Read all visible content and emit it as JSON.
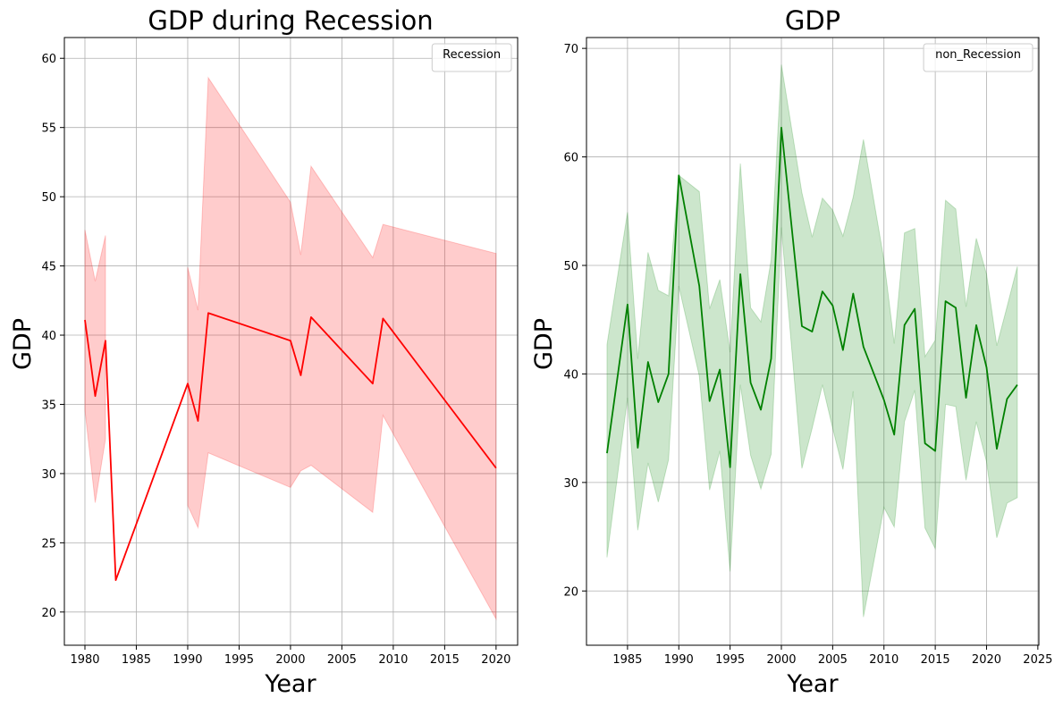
{
  "chart_data": [
    {
      "type": "line",
      "title": "GDP during Recession",
      "xlabel": "Year",
      "ylabel": "GDP",
      "xlim": [
        1978,
        2022.1
      ],
      "ylim": [
        17.6,
        61.5
      ],
      "xticks": [
        1980,
        1985,
        1990,
        1995,
        2000,
        2005,
        2010,
        2015,
        2020
      ],
      "yticks": [
        20,
        25,
        30,
        35,
        40,
        45,
        50,
        55,
        60
      ],
      "grid": true,
      "legend": {
        "title": "Recession",
        "placement": "top-right"
      },
      "colors": {
        "line": "#ff0000",
        "band": "#ff0000"
      },
      "series": [
        {
          "x": [
            1980,
            1981,
            1982,
            1983,
            1990,
            1991,
            1992,
            2000,
            2001,
            2002,
            2008,
            2009,
            2020
          ],
          "y": [
            41.1,
            35.6,
            39.6,
            22.3,
            36.5,
            33.8,
            41.6,
            39.6,
            37.1,
            41.3,
            36.5,
            41.2,
            30.4
          ],
          "lower": [
            34.6,
            27.9,
            32.5,
            null,
            27.7,
            26.1,
            31.5,
            29.0,
            30.2,
            30.6,
            27.2,
            34.2,
            19.5
          ],
          "upper": [
            47.6,
            43.9,
            47.2,
            null,
            44.9,
            41.8,
            58.6,
            49.6,
            45.8,
            52.2,
            45.6,
            48.0,
            45.9
          ]
        }
      ]
    },
    {
      "type": "line",
      "title": "GDP",
      "xlabel": "Year",
      "ylabel": "GDP",
      "xlim": [
        1981,
        2025.1
      ],
      "ylim": [
        15,
        71
      ],
      "xticks": [
        1985,
        1990,
        1995,
        2000,
        2005,
        2010,
        2015,
        2020,
        2025
      ],
      "yticks": [
        20,
        30,
        40,
        50,
        60,
        70
      ],
      "grid": true,
      "legend": {
        "title": "non_Recession",
        "placement": "top-right"
      },
      "colors": {
        "line": "#008000",
        "band": "#008000"
      },
      "series": [
        {
          "x": [
            1983,
            1985,
            1986,
            1987,
            1988,
            1989,
            1990,
            1992,
            1993,
            1994,
            1995,
            1996,
            1997,
            1998,
            1999,
            2000,
            2002,
            2003,
            2004,
            2005,
            2006,
            2007,
            2008,
            2010,
            2011,
            2012,
            2013,
            2014,
            2015,
            2016,
            2017,
            2018,
            2019,
            2020,
            2021,
            2022,
            2023
          ],
          "y": [
            32.7,
            46.4,
            33.2,
            41.1,
            37.4,
            40.0,
            58.3,
            48.1,
            37.5,
            40.4,
            31.4,
            49.2,
            39.2,
            36.7,
            41.4,
            62.7,
            44.4,
            43.9,
            47.6,
            46.3,
            42.2,
            47.4,
            42.5,
            37.6,
            34.4,
            44.5,
            46.0,
            33.6,
            32.9,
            46.7,
            46.1,
            37.8,
            44.5,
            40.6,
            33.1,
            37.7,
            39.0
          ],
          "lower": [
            23.1,
            37.8,
            25.6,
            31.8,
            28.2,
            32.1,
            48.1,
            39.8,
            29.3,
            32.9,
            21.8,
            39.0,
            32.5,
            29.4,
            32.6,
            53.5,
            31.3,
            35.0,
            39.0,
            35.0,
            31.2,
            38.4,
            17.6,
            27.7,
            25.9,
            35.6,
            38.5,
            25.8,
            23.9,
            37.2,
            37.0,
            30.2,
            35.6,
            31.9,
            24.9,
            28.1,
            28.6
          ],
          "upper": [
            42.7,
            54.9,
            41.4,
            51.2,
            47.7,
            47.2,
            58.3,
            56.8,
            46.0,
            48.7,
            42.0,
            59.4,
            46.1,
            44.8,
            50.5,
            68.5,
            56.7,
            52.6,
            56.2,
            55.1,
            52.7,
            56.3,
            61.6,
            50.5,
            42.8,
            53.0,
            53.4,
            41.6,
            43.1,
            56.0,
            55.2,
            46.2,
            52.5,
            49.2,
            42.6,
            46.2,
            49.9
          ]
        }
      ]
    }
  ]
}
